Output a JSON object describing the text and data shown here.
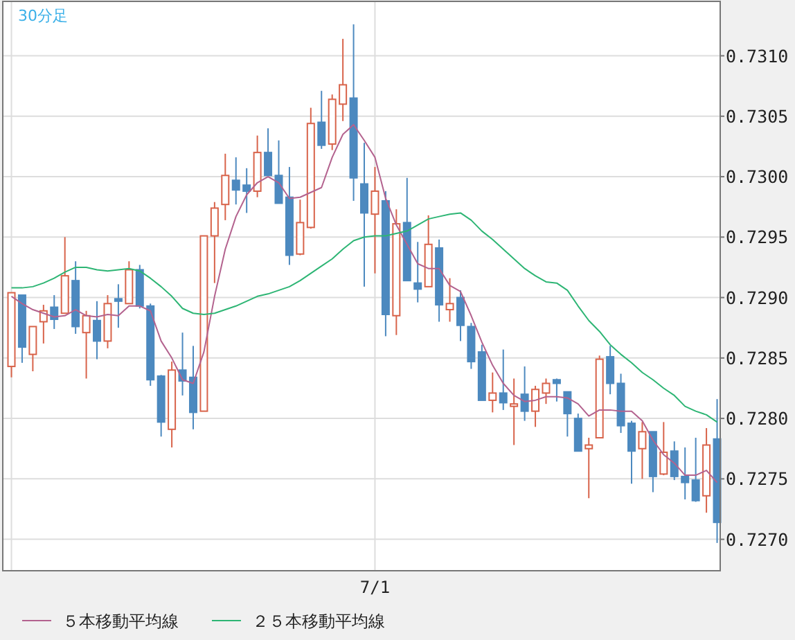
{
  "chart_data": {
    "type": "candlestick",
    "title": "30分足",
    "categories": [
      null,
      null,
      null,
      null,
      null,
      null,
      null,
      null,
      null,
      null,
      null,
      null,
      null,
      null,
      null,
      null,
      null,
      null,
      null,
      null,
      null,
      null,
      null,
      null,
      null,
      null,
      null,
      null,
      null,
      null,
      null,
      null,
      null,
      null,
      "7/1",
      null,
      null,
      null,
      null,
      null,
      null,
      null,
      null,
      null,
      null,
      null,
      null,
      null,
      null,
      null,
      null,
      null,
      null,
      null,
      null,
      null,
      null,
      null,
      null,
      null,
      null,
      null,
      null,
      null,
      null,
      null,
      null
    ],
    "ohlc": [
      [
        0.72843,
        0.72904,
        0.72834,
        0.72904
      ],
      [
        0.72902,
        0.72902,
        0.72846,
        0.72859
      ],
      [
        0.72853,
        0.72876,
        0.72839,
        0.72876
      ],
      [
        0.7288,
        0.72894,
        0.72862,
        0.72889
      ],
      [
        0.72892,
        0.72902,
        0.72874,
        0.72882
      ],
      [
        0.72887,
        0.7295,
        0.72887,
        0.72918
      ],
      [
        0.72914,
        0.7293,
        0.7287,
        0.72876
      ],
      [
        0.72871,
        0.72889,
        0.72833,
        0.72885
      ],
      [
        0.72881,
        0.72897,
        0.72849,
        0.72864
      ],
      [
        0.72864,
        0.72902,
        0.72858,
        0.72895
      ],
      [
        0.72899,
        0.72911,
        0.72875,
        0.72897
      ],
      [
        0.72895,
        0.7293,
        0.72895,
        0.72923
      ],
      [
        0.72923,
        0.72927,
        0.72891,
        0.72893
      ],
      [
        0.72893,
        0.72895,
        0.72827,
        0.72832
      ],
      [
        0.72835,
        0.72836,
        0.72785,
        0.72797
      ],
      [
        0.72791,
        0.72847,
        0.72776,
        0.7284
      ],
      [
        0.7284,
        0.72871,
        0.72819,
        0.72831
      ],
      [
        0.72834,
        0.7286,
        0.72791,
        0.72805
      ],
      [
        0.72806,
        0.72951,
        0.72806,
        0.72951
      ],
      [
        0.72951,
        0.72979,
        0.72912,
        0.72974
      ],
      [
        0.72977,
        0.73019,
        0.72964,
        0.73001
      ],
      [
        0.72997,
        0.73016,
        0.72977,
        0.72989
      ],
      [
        0.72993,
        0.73007,
        0.7297,
        0.72988
      ],
      [
        0.72988,
        0.73034,
        0.72983,
        0.7302
      ],
      [
        0.7302,
        0.7304,
        0.73001,
        0.73001
      ],
      [
        0.73001,
        0.7303,
        0.72978,
        0.72978
      ],
      [
        0.72983,
        0.73008,
        0.72927,
        0.72935
      ],
      [
        0.72936,
        0.72981,
        0.72935,
        0.72962
      ],
      [
        0.72958,
        0.73057,
        0.72957,
        0.73044
      ],
      [
        0.73045,
        0.73071,
        0.73023,
        0.73026
      ],
      [
        0.73027,
        0.73068,
        0.73022,
        0.73064
      ],
      [
        0.7306,
        0.73114,
        0.73046,
        0.73076
      ],
      [
        0.73065,
        0.73126,
        0.7298,
        0.72999
      ],
      [
        0.72994,
        0.73028,
        0.72909,
        0.7297
      ],
      [
        0.72969,
        0.73008,
        0.7292,
        0.72988
      ],
      [
        0.7298,
        0.72988,
        0.72868,
        0.72886
      ],
      [
        0.72885,
        0.72973,
        0.72869,
        0.72961
      ],
      [
        0.72962,
        0.72999,
        0.72914,
        0.72914
      ],
      [
        0.72912,
        0.72946,
        0.72896,
        0.72907
      ],
      [
        0.72909,
        0.72968,
        0.72909,
        0.72944
      ],
      [
        0.72941,
        0.72948,
        0.7288,
        0.72894
      ],
      [
        0.7289,
        0.72916,
        0.7288,
        0.72895
      ],
      [
        0.729,
        0.72906,
        0.72864,
        0.72877
      ],
      [
        0.72876,
        0.72879,
        0.72841,
        0.72847
      ],
      [
        0.72855,
        0.72861,
        0.72815,
        0.72815
      ],
      [
        0.72815,
        0.72838,
        0.72805,
        0.72821
      ],
      [
        0.72821,
        0.72857,
        0.72807,
        0.72813
      ],
      [
        0.7281,
        0.72833,
        0.72778,
        0.72812
      ],
      [
        0.7282,
        0.72843,
        0.72798,
        0.72806
      ],
      [
        0.72806,
        0.72827,
        0.72793,
        0.72824
      ],
      [
        0.72821,
        0.72833,
        0.72812,
        0.72829
      ],
      [
        0.72832,
        0.72833,
        0.72814,
        0.72829
      ],
      [
        0.72822,
        0.72822,
        0.72785,
        0.72804
      ],
      [
        0.728,
        0.72804,
        0.72773,
        0.72773
      ],
      [
        0.72775,
        0.72784,
        0.72734,
        0.72778
      ],
      [
        0.72784,
        0.72852,
        0.72784,
        0.72849
      ],
      [
        0.72851,
        0.7286,
        0.7282,
        0.72829
      ],
      [
        0.72829,
        0.72837,
        0.72788,
        0.72794
      ],
      [
        0.72796,
        0.72798,
        0.72746,
        0.72773
      ],
      [
        0.72775,
        0.72797,
        0.7275,
        0.72789
      ],
      [
        0.72789,
        0.72789,
        0.72739,
        0.72752
      ],
      [
        0.72754,
        0.72797,
        0.72753,
        0.72772
      ],
      [
        0.72773,
        0.72781,
        0.72749,
        0.72752
      ],
      [
        0.72752,
        0.72776,
        0.72733,
        0.72747
      ],
      [
        0.72749,
        0.72784,
        0.72731,
        0.72732
      ],
      [
        0.72736,
        0.72792,
        0.72722,
        0.72778
      ],
      [
        0.72783,
        0.72816,
        0.72697,
        0.72714
      ]
    ],
    "colors": [
      "#d8634a",
      "#4c89bf",
      "#d8634a",
      "#d8634a",
      "#4c89bf",
      "#d8634a",
      "#4c89bf",
      "#d8634a",
      "#4c89bf",
      "#d8634a",
      "#4c89bf",
      "#d8634a",
      "#4c89bf",
      "#4c89bf",
      "#4c89bf",
      "#d8634a",
      "#4c89bf",
      "#4c89bf",
      "#d8634a",
      "#d8634a",
      "#d8634a",
      "#4c89bf",
      "#4c89bf",
      "#d8634a",
      "#4c89bf",
      "#4c89bf",
      "#4c89bf",
      "#d8634a",
      "#d8634a",
      "#4c89bf",
      "#d8634a",
      "#d8634a",
      "#4c89bf",
      "#4c89bf",
      "#d8634a",
      "#4c89bf",
      "#d8634a",
      "#4c89bf",
      "#4c89bf",
      "#d8634a",
      "#4c89bf",
      "#d8634a",
      "#4c89bf",
      "#4c89bf",
      "#4c89bf",
      "#d8634a",
      "#4c89bf",
      "#d8634a",
      "#4c89bf",
      "#d8634a",
      "#d8634a",
      "#4c89bf",
      "#4c89bf",
      "#4c89bf",
      "#d8634a",
      "#d8634a",
      "#4c89bf",
      "#4c89bf",
      "#4c89bf",
      "#d8634a",
      "#4c89bf",
      "#d8634a",
      "#4c89bf",
      "#4c89bf",
      "#4c89bf",
      "#d8634a",
      "#4c89bf"
    ],
    "series": [
      {
        "name": "５本移動平均線",
        "type": "line",
        "color": "#b3628e",
        "values": [
          0.72901,
          0.72895,
          0.7289,
          0.72887,
          0.72884,
          0.72885,
          0.7289,
          0.72885,
          0.72884,
          0.72886,
          0.72885,
          0.72893,
          0.72893,
          0.72889,
          0.72864,
          0.7285,
          0.72832,
          0.72829,
          0.72855,
          0.72901,
          0.7294,
          0.72967,
          0.72985,
          0.72995,
          0.73,
          0.72995,
          0.72982,
          0.72983,
          0.72987,
          0.72991,
          0.73016,
          0.73035,
          0.73043,
          0.7303,
          0.73016,
          0.72982,
          0.7296,
          0.72944,
          0.72928,
          0.72924,
          0.72924,
          0.7291,
          0.72905,
          0.72885,
          0.72863,
          0.72844,
          0.72829,
          0.72819,
          0.72814,
          0.72815,
          0.72818,
          0.72818,
          0.72817,
          0.72812,
          0.72802,
          0.72807,
          0.72807,
          0.72806,
          0.72806,
          0.72798,
          0.72782,
          0.7277,
          0.72763,
          0.72753,
          0.72753,
          0.72757,
          0.72747
        ]
      },
      {
        "name": "２５本移動平均線",
        "type": "line",
        "color": "#2db574",
        "values": [
          0.72908,
          0.72908,
          0.72909,
          0.72912,
          0.72916,
          0.72921,
          0.72925,
          0.72925,
          0.72923,
          0.72922,
          0.72923,
          0.72924,
          0.72922,
          0.72916,
          0.72909,
          0.72901,
          0.72891,
          0.72887,
          0.72886,
          0.72887,
          0.7289,
          0.72893,
          0.72897,
          0.72901,
          0.72903,
          0.72906,
          0.72909,
          0.72914,
          0.7292,
          0.72926,
          0.72932,
          0.7294,
          0.72947,
          0.7295,
          0.72951,
          0.72951,
          0.72953,
          0.72955,
          0.7296,
          0.72965,
          0.72967,
          0.72969,
          0.7297,
          0.72964,
          0.72955,
          0.72948,
          0.7294,
          0.72932,
          0.72924,
          0.72918,
          0.72913,
          0.72912,
          0.72906,
          0.72893,
          0.72881,
          0.72872,
          0.72861,
          0.72853,
          0.72846,
          0.72838,
          0.72832,
          0.72825,
          0.72819,
          0.7281,
          0.72806,
          0.72803,
          0.72797
        ]
      }
    ],
    "ylim": [
      0.72674,
      0.73145
    ],
    "yticks": [
      {
        "value": 0.727,
        "label": "0.7270"
      },
      {
        "value": 0.7275,
        "label": "0.7275"
      },
      {
        "value": 0.728,
        "label": "0.7280"
      },
      {
        "value": 0.7285,
        "label": "0.7285"
      },
      {
        "value": 0.729,
        "label": "0.7290"
      },
      {
        "value": 0.7295,
        "label": "0.7295"
      },
      {
        "value": 0.73,
        "label": "0.7300"
      },
      {
        "value": 0.7305,
        "label": "0.7305"
      },
      {
        "value": 0.731,
        "label": "0.7310"
      }
    ],
    "grid": true,
    "legend": "bottom"
  }
}
